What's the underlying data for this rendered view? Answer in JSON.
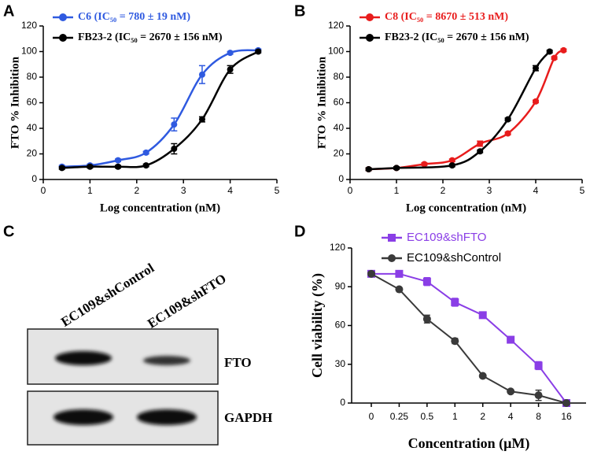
{
  "chart_data": [
    {
      "type": "scatter",
      "panel_label": "A",
      "x_label": "Log concentration (nM)",
      "y_label": "FTO % Inhibition",
      "xlim": [
        0,
        5
      ],
      "xticks": [
        0,
        1,
        2,
        3,
        4,
        5
      ],
      "ylim": [
        0,
        120
      ],
      "yticks": [
        0,
        20,
        40,
        60,
        80,
        100,
        120
      ],
      "legend": "upper left",
      "series": [
        {
          "name": "C6 (IC₅₀ = 780 ± 19 nM)",
          "color": "#2f5ae0",
          "x": [
            0.4,
            1,
            1.6,
            2.2,
            2.8,
            3.4,
            4,
            4.6
          ],
          "values": [
            10,
            11,
            15,
            21,
            43,
            82,
            99,
            101
          ],
          "errors": [
            1,
            1,
            1,
            1,
            5,
            7,
            1,
            1
          ]
        },
        {
          "name": "FB23-2 (IC₅₀ = 2670 ± 156 nM)",
          "color": "#000000",
          "x": [
            0.4,
            1,
            1.6,
            2.2,
            2.8,
            3.4,
            4,
            4.6
          ],
          "values": [
            9,
            10,
            10,
            11,
            24,
            47,
            86,
            100
          ],
          "errors": [
            1,
            1,
            1,
            1,
            4,
            2,
            3,
            1
          ]
        }
      ]
    },
    {
      "type": "scatter",
      "panel_label": "B",
      "x_label": "Log concentration (nM)",
      "y_label": "FTO % Inhibition",
      "xlim": [
        0,
        5
      ],
      "xticks": [
        0,
        1,
        2,
        3,
        4,
        5
      ],
      "ylim": [
        0,
        120
      ],
      "yticks": [
        0,
        20,
        40,
        60,
        80,
        100,
        120
      ],
      "legend": "upper left",
      "series": [
        {
          "name": "C8 (IC₅₀ = 8670 ± 513 nM)",
          "color": "#e81c1c",
          "x": [
            0.4,
            1,
            1.6,
            2.2,
            2.8,
            3.4,
            4,
            4.4,
            4.6
          ],
          "values": [
            8,
            9,
            12,
            15,
            28,
            36,
            61,
            95,
            101
          ],
          "errors": [
            1,
            1,
            1,
            1,
            2,
            1,
            1,
            1,
            1
          ]
        },
        {
          "name": "FB23-2 (IC₅₀ = 2670 ± 156 nM)",
          "color": "#000000",
          "x": [
            0.4,
            1,
            2.2,
            2.8,
            3.4,
            4,
            4.3
          ],
          "values": [
            8,
            9,
            11,
            22,
            47,
            87,
            100
          ],
          "errors": [
            1,
            1,
            1,
            1,
            1,
            2,
            1
          ]
        }
      ]
    },
    {
      "type": "line",
      "panel_label": "D",
      "x_label": "Concentration (μM)",
      "y_label": "Cell viability (%)",
      "categories": [
        "0",
        "0.25",
        "0.5",
        "1",
        "2",
        "4",
        "8",
        "16"
      ],
      "ylim": [
        0,
        120
      ],
      "yticks": [
        0,
        30,
        60,
        90,
        120
      ],
      "legend": "upper left",
      "series": [
        {
          "name": "EC109&shFTO",
          "color": "#8a3ee6",
          "marker": "square",
          "values": [
            100,
            100,
            94,
            78,
            68,
            49,
            29,
            0
          ],
          "errors": [
            0,
            1,
            3,
            3,
            2,
            1,
            3,
            1
          ]
        },
        {
          "name": "EC109&shControl",
          "color": "#3a3a3a",
          "marker": "circle",
          "values": [
            100,
            88,
            65,
            48,
            21,
            9,
            6,
            0
          ],
          "errors": [
            0,
            1,
            3,
            2,
            1,
            1,
            4,
            1
          ]
        }
      ]
    }
  ],
  "blot": {
    "panel_label": "C",
    "lanes": [
      "EC109&shControl",
      "EC109&shFTO"
    ],
    "bands": [
      "FTO",
      "GAPDH"
    ]
  }
}
